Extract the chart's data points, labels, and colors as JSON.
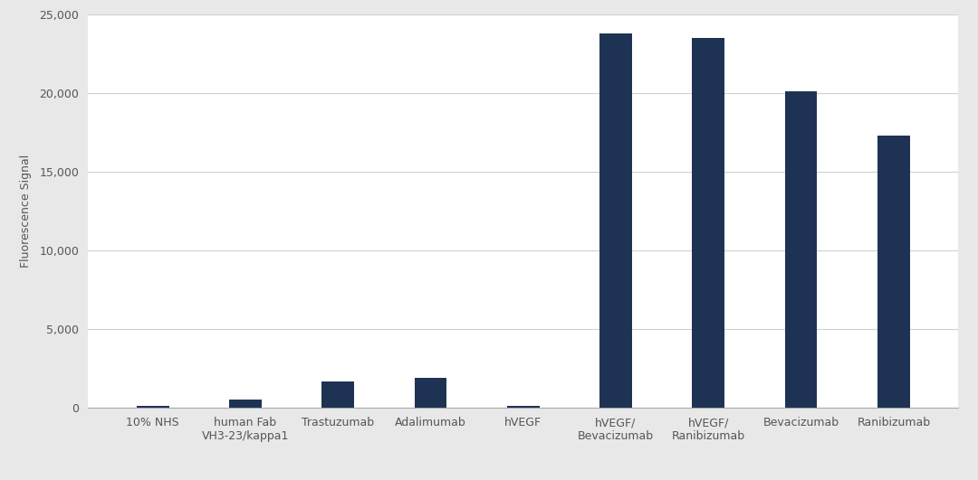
{
  "categories": [
    "10% NHS",
    "human Fab\nVH3-23/kappa1",
    "Trastuzumab",
    "Adalimumab",
    "hVEGF",
    "hVEGF/\nBevacizumab",
    "hVEGF/\nRanibizumab",
    "Bevacizumab",
    "Ranibizumab"
  ],
  "values": [
    120,
    560,
    1700,
    1900,
    150,
    23800,
    23500,
    20100,
    17300
  ],
  "bar_color": "#1e3354",
  "ylabel": "Fluorescence Signal",
  "ylim": [
    0,
    25000
  ],
  "yticks": [
    0,
    5000,
    10000,
    15000,
    20000,
    25000
  ],
  "plot_bg_color": "#ffffff",
  "fig_bg_color": "#e8e8e8",
  "grid_color": "#d0d0d0",
  "tick_label_fontsize": 9,
  "ylabel_fontsize": 9,
  "bar_width": 0.35
}
